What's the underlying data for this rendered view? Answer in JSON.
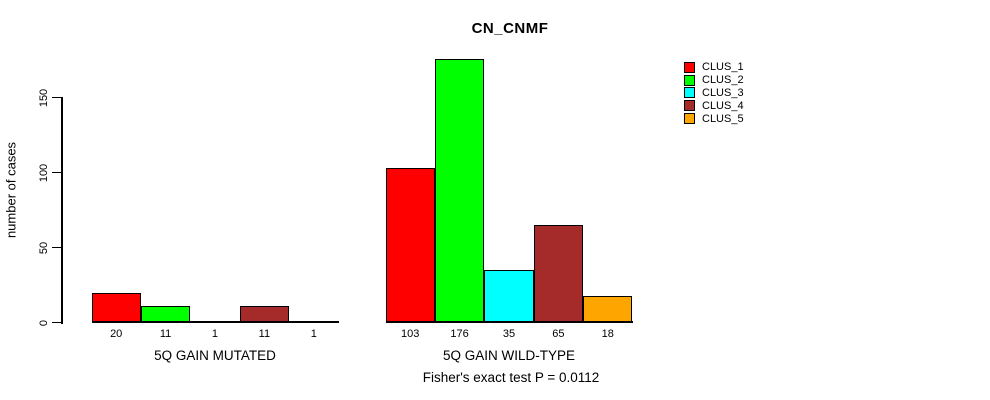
{
  "title": "CN_CNMF",
  "footer": "Fisher's exact test P = 0.0112",
  "legend": {
    "entries": [
      {
        "label": "CLUS_1",
        "color": "#FF0000"
      },
      {
        "label": "CLUS_2",
        "color": "#00FF00"
      },
      {
        "label": "CLUS_3",
        "color": "#00FFFF"
      },
      {
        "label": "CLUS_4",
        "color": "#A52A2A"
      },
      {
        "label": "CLUS_5",
        "color": "#FFA500"
      }
    ]
  },
  "chart_data": {
    "type": "bar",
    "title": "CN_CNMF",
    "xlabel": "",
    "ylabel": "number of cases",
    "ylim": [
      0,
      176
    ],
    "yticks": [
      0,
      50,
      100,
      150
    ],
    "grid": false,
    "legend_position": "right-outside",
    "series": [
      "CLUS_1",
      "CLUS_2",
      "CLUS_3",
      "CLUS_4",
      "CLUS_5"
    ],
    "colors": [
      "#FF0000",
      "#00FF00",
      "#00FFFF",
      "#A52A2A",
      "#FFA500"
    ],
    "groups": [
      {
        "label": "5Q GAIN MUTATED",
        "values": [
          20,
          11,
          1,
          11,
          1
        ]
      },
      {
        "label": "5Q GAIN WILD-TYPE",
        "values": [
          103,
          176,
          35,
          65,
          18
        ]
      }
    ],
    "annotation": "Fisher's exact test P = 0.0112"
  }
}
